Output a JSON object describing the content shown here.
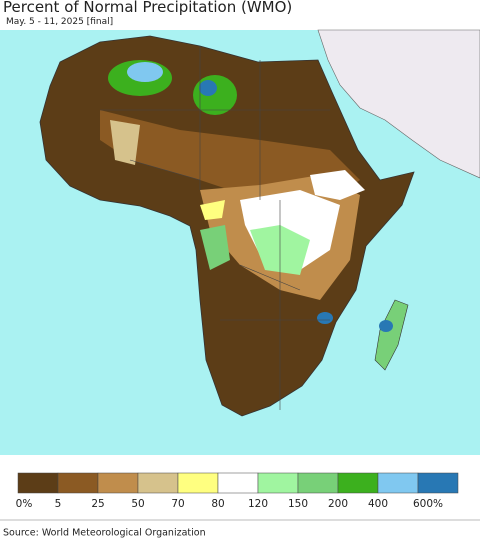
{
  "header": {
    "title": "Percent of Normal Precipitation (WMO)",
    "subtitle": "May. 5 - 11, 2025 [final]"
  },
  "legend": {
    "labels": [
      "0%",
      "5",
      "25",
      "50",
      "70",
      "80",
      "120",
      "150",
      "200",
      "400",
      "600%"
    ],
    "colors": [
      "#5c3d17",
      "#8b5a23",
      "#c08d4c",
      "#d6c28c",
      "#ffff80",
      "#ffffff",
      "#a0f5a0",
      "#78d078",
      "#3cb01e",
      "#80c8f0",
      "#2878b4"
    ]
  },
  "footer": {
    "source": "Source: World Meteorological Organization"
  }
}
